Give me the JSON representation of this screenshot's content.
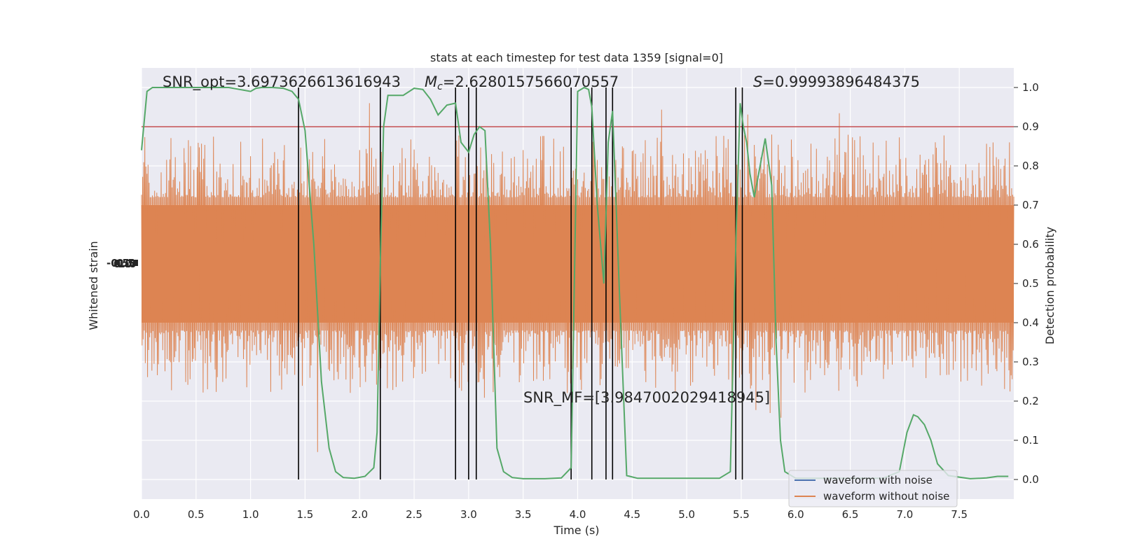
{
  "chart_data": {
    "type": "line",
    "title": "stats at each timestep for test data 1359 [signal=0]",
    "xlabel": "Time (s)",
    "ylabel_left": "Whitened strain",
    "ylabel_right": "Detection probability",
    "xlim": [
      0,
      8
    ],
    "ylim_right": [
      -0.05,
      1.05
    ],
    "x_ticks": [
      "0.0",
      "0.5",
      "1.0",
      "1.5",
      "2.0",
      "2.5",
      "3.0",
      "3.5",
      "4.0",
      "4.5",
      "5.0",
      "5.5",
      "6.0",
      "6.5",
      "7.0",
      "7.5"
    ],
    "y_right_ticks": [
      "0.0",
      "0.1",
      "0.2",
      "0.3",
      "0.4",
      "0.5",
      "0.6",
      "0.7",
      "0.8",
      "0.9",
      "1.0"
    ],
    "grid": true,
    "annotations": {
      "snr_opt": "SNR_opt=3.6973626613616943",
      "mc_symbol": "M",
      "mc_sub": "c",
      "mc_value": "=2.6280157566070557",
      "s_symbol": "S",
      "s_value": "=0.99993896484375",
      "snr_mf": "SNR_MF=[3.9847002029418945]"
    },
    "threshold": 0.9,
    "threshold_color": "#c44e52",
    "event_lines_x": [
      1.44,
      2.19,
      2.88,
      3.0,
      3.07,
      3.94,
      4.13,
      4.26,
      4.32,
      5.45,
      5.51
    ],
    "series": [
      {
        "name": "waveform with noise",
        "color": "#4c72b0",
        "values": []
      },
      {
        "name": "waveform without noise",
        "color": "#dd8452",
        "band_center": 0.55,
        "band_core": [
          0.4,
          0.7
        ],
        "spike_range": [
          0.07,
          0.96
        ]
      },
      {
        "name": "detection probability",
        "color": "#55a868",
        "x": [
          0,
          0.05,
          0.1,
          0.2,
          0.35,
          0.5,
          0.65,
          0.8,
          0.9,
          1.0,
          1.05,
          1.1,
          1.2,
          1.3,
          1.38,
          1.44,
          1.5,
          1.58,
          1.65,
          1.72,
          1.78,
          1.85,
          1.95,
          2.05,
          2.13,
          2.16,
          2.19,
          2.22,
          2.26,
          2.3,
          2.4,
          2.5,
          2.58,
          2.65,
          2.72,
          2.8,
          2.88,
          2.93,
          3.0,
          3.05,
          3.1,
          3.15,
          3.2,
          3.26,
          3.32,
          3.4,
          3.5,
          3.7,
          3.85,
          3.94,
          4.0,
          4.06,
          4.1,
          4.13,
          4.18,
          4.24,
          4.28,
          4.32,
          4.38,
          4.45,
          4.55,
          4.7,
          4.9,
          5.1,
          5.3,
          5.4,
          5.45,
          5.49,
          5.52,
          5.55,
          5.58,
          5.62,
          5.66,
          5.72,
          5.78,
          5.82,
          5.86,
          5.9,
          6.0,
          6.2,
          6.5,
          6.8,
          6.95,
          7.02,
          7.08,
          7.12,
          7.18,
          7.24,
          7.3,
          7.4,
          7.6,
          7.75,
          7.85,
          7.95
        ],
        "values": [
          0.84,
          0.99,
          1.0,
          1.0,
          1.0,
          1.0,
          1.0,
          1.0,
          0.995,
          0.99,
          0.998,
          1.0,
          1.0,
          0.998,
          0.99,
          0.97,
          0.89,
          0.6,
          0.25,
          0.08,
          0.02,
          0.005,
          0.003,
          0.008,
          0.03,
          0.12,
          0.55,
          0.9,
          0.98,
          0.98,
          0.98,
          0.998,
          0.995,
          0.97,
          0.93,
          0.955,
          0.96,
          0.86,
          0.835,
          0.88,
          0.9,
          0.89,
          0.6,
          0.08,
          0.02,
          0.005,
          0.002,
          0.002,
          0.004,
          0.03,
          0.99,
          1.0,
          0.995,
          0.95,
          0.7,
          0.5,
          0.86,
          0.94,
          0.5,
          0.01,
          0.003,
          0.003,
          0.003,
          0.003,
          0.003,
          0.02,
          0.6,
          0.96,
          0.9,
          0.86,
          0.78,
          0.72,
          0.78,
          0.87,
          0.75,
          0.35,
          0.1,
          0.02,
          0.003,
          0.003,
          0.003,
          0.003,
          0.02,
          0.12,
          0.165,
          0.16,
          0.14,
          0.1,
          0.04,
          0.01,
          0.002,
          0.004,
          0.008,
          0.008
        ]
      }
    ],
    "legend": {
      "position": "lower-right",
      "entries": [
        {
          "label": "waveform with noise",
          "color": "#4c72b0"
        },
        {
          "label": "waveform without noise",
          "color": "#dd8452"
        }
      ]
    }
  }
}
